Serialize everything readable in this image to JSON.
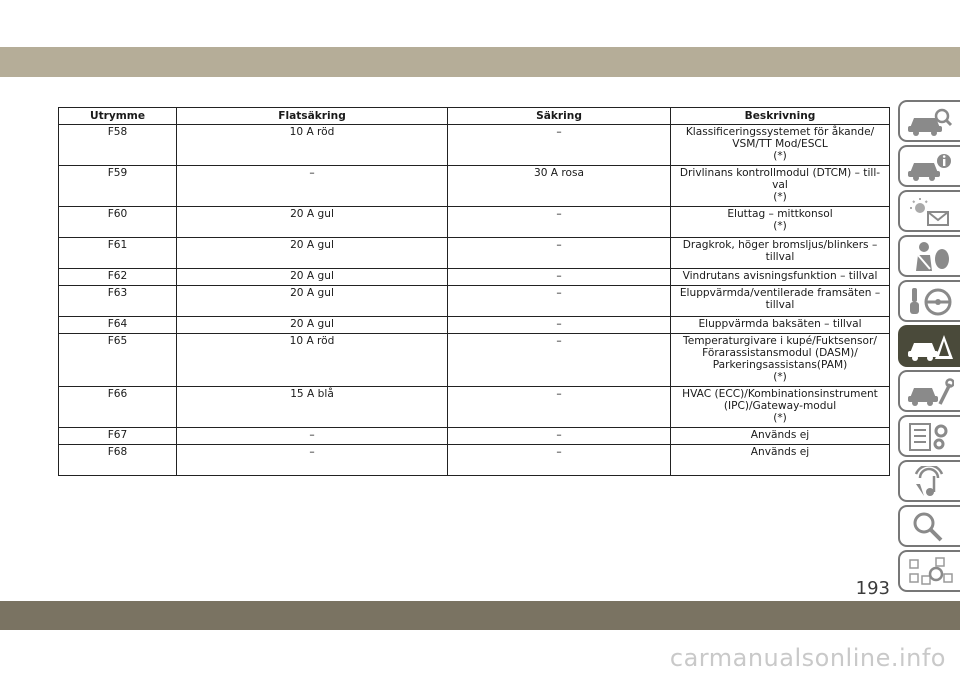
{
  "header": [
    "Utrymme",
    "Flatsäkring",
    "Säkring",
    "Beskrivning"
  ],
  "rows": [
    {
      "cavity": "F58",
      "blade": "10 A röd",
      "cartridge": "–",
      "lines": [
        "Klassificeringssystemet för åkande/",
        "VSM/TT Mod/ESCL",
        "(*)"
      ]
    },
    {
      "cavity": "F59",
      "blade": "–",
      "cartridge": "30 A rosa",
      "lines": [
        "Drivlinans kontrollmodul (DTCM) – till-",
        "val",
        "(*)"
      ]
    },
    {
      "cavity": "F60",
      "blade": "20 A gul",
      "cartridge": "–",
      "lines": [
        "Eluttag – mittkonsol",
        "(*)"
      ]
    },
    {
      "cavity": "F61",
      "blade": "20 A gul",
      "cartridge": "–",
      "lines": [
        "Dragkrok, höger bromsljus/blinkers –",
        "tillval"
      ]
    },
    {
      "cavity": "F62",
      "blade": "20 A gul",
      "cartridge": "–",
      "lines": [
        "Vindrutans avisningsfunktion – tillval"
      ]
    },
    {
      "cavity": "F63",
      "blade": "20 A gul",
      "cartridge": "–",
      "lines": [
        "Eluppvärmda/ventilerade framsäten –",
        "tillval"
      ]
    },
    {
      "cavity": "F64",
      "blade": "20 A gul",
      "cartridge": "–",
      "lines": [
        "Eluppvärmda baksäten – tillval"
      ]
    },
    {
      "cavity": "F65",
      "blade": "10 A röd",
      "cartridge": "–",
      "lines": [
        "Temperaturgivare i kupé/Fuktsensor/",
        "Förarassistansmodul (DASM)/",
        "Parkeringsassistans(PAM)",
        "(*)"
      ]
    },
    {
      "cavity": "F66",
      "blade": "15 A blå",
      "cartridge": "–",
      "lines": [
        "HVAC (ECC)/Kombinationsinstrument",
        "(IPC)/Gateway-modul",
        "(*)"
      ]
    },
    {
      "cavity": "F67",
      "blade": "–",
      "cartridge": "–",
      "lines": [
        "Används ej"
      ]
    },
    {
      "cavity": "F68",
      "blade": "–",
      "cartridge": "–",
      "lines": [
        "Används ej"
      ]
    }
  ],
  "page_number": "193",
  "watermark": "carmanualsonline.info",
  "sidebar_tabs": [
    {
      "icon": "car-magnifier-icon"
    },
    {
      "icon": "car-info-icon"
    },
    {
      "icon": "warning-light-message-icon"
    },
    {
      "icon": "seatbelt-airbag-icon"
    },
    {
      "icon": "key-steering-wheel-icon"
    },
    {
      "icon": "car-breakdown-warning-icon",
      "active": true
    },
    {
      "icon": "car-service-wrench-icon"
    },
    {
      "icon": "checklist-gears-icon"
    },
    {
      "icon": "music-navigation-icon"
    },
    {
      "icon": "search-magnifier-icon"
    },
    {
      "icon": "alphabetical-index-icon"
    }
  ],
  "colors": {
    "top_band": "#b5ad98",
    "bottom_band": "#7a7362",
    "active_tab": "#4a4a3a"
  }
}
